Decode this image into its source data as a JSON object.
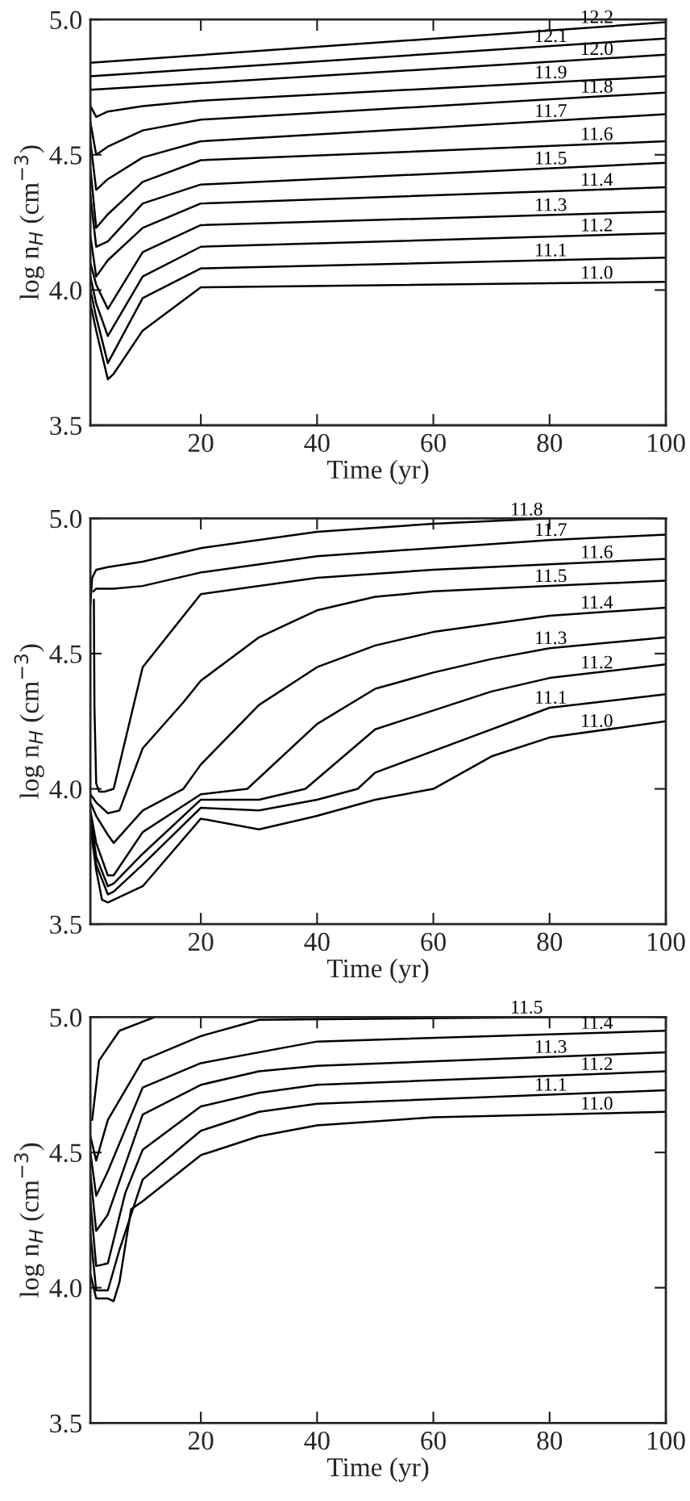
{
  "chart_data": [
    {
      "type": "line",
      "xlabel": "Time (yr)",
      "ylabel": "log n$_{H}$ (cm$^{−3}$)",
      "xlim": [
        1,
        100
      ],
      "xticks": [
        20,
        40,
        60,
        80,
        100
      ],
      "ylim": [
        3.5,
        5.0
      ],
      "yticks": [
        {
          "value": 3.5,
          "label": "3.5"
        },
        {
          "value": 4,
          "label": "4.0"
        },
        {
          "value": 4.5,
          "label": "4.5"
        },
        {
          "value": 5,
          "label": "5.0"
        }
      ],
      "series": [
        {
          "name": "12.2",
          "color": "#000000",
          "x": [
            1,
            100
          ],
          "values": [
            4.84,
            4.99
          ]
        },
        {
          "name": "12.1",
          "color": "#000000",
          "x": [
            1,
            100
          ],
          "values": [
            4.79,
            4.93
          ]
        },
        {
          "name": "12.0",
          "color": "#000000",
          "x": [
            1,
            100
          ],
          "values": [
            4.74,
            4.87
          ]
        },
        {
          "name": "11.9",
          "color": "#000000",
          "x": [
            1,
            2,
            4,
            10,
            20,
            100
          ],
          "values": [
            4.68,
            4.64,
            4.66,
            4.68,
            4.7,
            4.79
          ]
        },
        {
          "name": "11.8",
          "color": "#000000",
          "x": [
            1,
            2,
            4,
            10,
            20,
            100
          ],
          "values": [
            4.62,
            4.5,
            4.53,
            4.59,
            4.63,
            4.73
          ]
        },
        {
          "name": "11.7",
          "color": "#000000",
          "x": [
            1,
            2,
            4,
            10,
            20,
            100
          ],
          "values": [
            4.55,
            4.37,
            4.41,
            4.49,
            4.55,
            4.65
          ]
        },
        {
          "name": "11.6",
          "color": "#000000",
          "x": [
            1,
            2,
            4,
            10,
            20,
            100
          ],
          "values": [
            4.45,
            4.23,
            4.28,
            4.4,
            4.48,
            4.55
          ]
        },
        {
          "name": "11.5",
          "color": "#000000",
          "x": [
            1,
            2,
            4,
            10,
            20,
            100
          ],
          "values": [
            4.35,
            4.16,
            4.18,
            4.32,
            4.39,
            4.47
          ]
        },
        {
          "name": "11.4",
          "color": "#000000",
          "x": [
            1,
            2,
            4,
            10,
            20,
            100
          ],
          "values": [
            4.2,
            4.05,
            4.11,
            4.23,
            4.32,
            4.38
          ]
        },
        {
          "name": "11.3",
          "color": "#000000",
          "x": [
            1,
            2,
            4,
            10,
            20,
            100
          ],
          "values": [
            4.1,
            4.02,
            3.93,
            4.14,
            4.24,
            4.29
          ]
        },
        {
          "name": "11.2",
          "color": "#000000",
          "x": [
            1,
            2,
            4,
            10,
            20,
            100
          ],
          "values": [
            4.05,
            3.95,
            3.83,
            4.05,
            4.16,
            4.21
          ]
        },
        {
          "name": "11.1",
          "color": "#000000",
          "x": [
            1,
            2,
            4,
            10,
            20,
            100
          ],
          "values": [
            4.0,
            3.9,
            3.73,
            3.97,
            4.08,
            4.12
          ]
        },
        {
          "name": "11.0",
          "color": "#000000",
          "x": [
            1,
            2,
            4,
            5,
            10,
            20,
            100
          ],
          "values": [
            3.95,
            3.85,
            3.67,
            3.69,
            3.85,
            4.01,
            4.03
          ]
        }
      ]
    },
    {
      "type": "line",
      "xlabel": "Time (yr)",
      "ylabel": "log n$_{H}$ (cm$^{−3}$)",
      "xlim": [
        1,
        100
      ],
      "xticks": [
        20,
        40,
        60,
        80,
        100
      ],
      "ylim": [
        3.5,
        5.0
      ],
      "yticks": [
        {
          "value": 3.5,
          "label": "3.5"
        },
        {
          "value": 4,
          "label": "4.0"
        },
        {
          "value": 4.5,
          "label": "4.5"
        },
        {
          "value": 5,
          "label": "5.0"
        }
      ],
      "series": [
        {
          "name": "11.8",
          "color": "#000000",
          "x": [
            1,
            1.3,
            2,
            4,
            10,
            20,
            40,
            60,
            80
          ],
          "values": [
            4.68,
            4.78,
            4.81,
            4.82,
            4.84,
            4.89,
            4.95,
            4.98,
            5.0
          ]
        },
        {
          "name": "11.7",
          "color": "#000000",
          "x": [
            1.5,
            2,
            5,
            10,
            20,
            40,
            60,
            80,
            100
          ],
          "values": [
            4.73,
            4.74,
            4.74,
            4.75,
            4.8,
            4.86,
            4.89,
            4.92,
            4.94
          ]
        },
        {
          "name": "11.6",
          "color": "#000000",
          "x": [
            1.6,
            1.7,
            2,
            2.5,
            3.5,
            5,
            10,
            20,
            40,
            60,
            80,
            100
          ],
          "values": [
            4.7,
            4.3,
            4.02,
            3.99,
            3.99,
            4.0,
            4.45,
            4.72,
            4.78,
            4.81,
            4.83,
            4.85
          ]
        },
        {
          "name": "11.5",
          "color": "#000000",
          "x": [
            1,
            2,
            4,
            6,
            10,
            17,
            20,
            30,
            40,
            50,
            60,
            80,
            100
          ],
          "values": [
            3.98,
            3.95,
            3.91,
            3.92,
            4.15,
            4.32,
            4.4,
            4.56,
            4.66,
            4.71,
            4.73,
            4.75,
            4.77
          ]
        },
        {
          "name": "11.4",
          "color": "#000000",
          "x": [
            1,
            2,
            4,
            5,
            10,
            17,
            20,
            30,
            40,
            50,
            60,
            80,
            100
          ],
          "values": [
            3.95,
            3.9,
            3.83,
            3.8,
            3.92,
            4.0,
            4.09,
            4.31,
            4.45,
            4.53,
            4.58,
            4.64,
            4.67
          ]
        },
        {
          "name": "11.3",
          "color": "#000000",
          "x": [
            1,
            2,
            4,
            5,
            10,
            20,
            28,
            40,
            50,
            60,
            70,
            80,
            100
          ],
          "values": [
            3.92,
            3.8,
            3.68,
            3.68,
            3.84,
            3.98,
            4.0,
            4.24,
            4.37,
            4.43,
            4.48,
            4.52,
            4.56
          ]
        },
        {
          "name": "11.2",
          "color": "#000000",
          "x": [
            1,
            2,
            4,
            5,
            10,
            20,
            30,
            38,
            50,
            60,
            70,
            80,
            100
          ],
          "values": [
            3.9,
            3.75,
            3.64,
            3.65,
            3.76,
            3.96,
            3.96,
            4.0,
            4.22,
            4.29,
            4.36,
            4.41,
            4.46
          ]
        },
        {
          "name": "11.1",
          "color": "#000000",
          "x": [
            1,
            2,
            4,
            5,
            10,
            20,
            30,
            40,
            47,
            50,
            60,
            80,
            100
          ],
          "values": [
            3.88,
            3.72,
            3.61,
            3.62,
            3.72,
            3.93,
            3.92,
            3.96,
            4.0,
            4.06,
            4.14,
            4.3,
            4.35
          ]
        },
        {
          "name": "11.0",
          "color": "#000000",
          "x": [
            1,
            2,
            3,
            4,
            10,
            20,
            30,
            40,
            50,
            60,
            70,
            80,
            100
          ],
          "values": [
            3.86,
            3.7,
            3.59,
            3.58,
            3.64,
            3.89,
            3.85,
            3.9,
            3.96,
            4.0,
            4.12,
            4.19,
            4.25
          ]
        }
      ]
    },
    {
      "type": "line",
      "xlabel": "Time (yr)",
      "ylabel": "log n$_{H}$ (cm$^{−3}$)",
      "xlim": [
        1,
        100
      ],
      "xticks": [
        20,
        40,
        60,
        80,
        100
      ],
      "ylim": [
        3.5,
        5.0
      ],
      "yticks": [
        {
          "value": 3.5,
          "label": "3.5"
        },
        {
          "value": 4,
          "label": "4.0"
        },
        {
          "value": 4.5,
          "label": "4.5"
        },
        {
          "value": 5,
          "label": "5.0"
        }
      ],
      "series": [
        {
          "color": "#000000",
          "x": [
            1.3,
            2.5,
            6,
            12
          ],
          "values": [
            4.62,
            4.84,
            4.95,
            5.0
          ]
        },
        {
          "name": "11.5",
          "color": "#000000",
          "x": [
            1,
            2,
            4,
            10,
            20,
            30,
            80
          ],
          "values": [
            4.56,
            4.47,
            4.62,
            4.84,
            4.93,
            4.99,
            5.0
          ]
        },
        {
          "name": "11.4",
          "color": "#000000",
          "x": [
            1,
            2,
            4,
            10,
            20,
            40,
            100
          ],
          "values": [
            4.5,
            4.34,
            4.43,
            4.74,
            4.83,
            4.91,
            4.95
          ]
        },
        {
          "name": "11.3",
          "color": "#000000",
          "x": [
            1,
            2,
            4,
            10,
            20,
            30,
            40,
            100
          ],
          "values": [
            4.42,
            4.21,
            4.27,
            4.64,
            4.75,
            4.8,
            4.82,
            4.87
          ]
        },
        {
          "name": "11.2",
          "color": "#000000",
          "x": [
            1,
            2,
            4,
            7,
            10,
            20,
            30,
            40,
            100
          ],
          "values": [
            4.32,
            4.08,
            4.09,
            4.35,
            4.51,
            4.67,
            4.72,
            4.75,
            4.8
          ]
        },
        {
          "name": "11.1",
          "color": "#000000",
          "x": [
            1,
            2,
            4,
            6,
            10,
            20,
            30,
            40,
            100
          ],
          "values": [
            4.2,
            3.99,
            3.99,
            4.14,
            4.4,
            4.58,
            4.65,
            4.68,
            4.73
          ]
        },
        {
          "name": "11.0",
          "color": "#000000",
          "x": [
            1,
            2,
            4,
            5,
            6,
            8,
            10,
            20,
            30,
            40,
            60,
            100
          ],
          "values": [
            4.05,
            3.96,
            3.96,
            3.95,
            4.02,
            4.29,
            4.32,
            4.49,
            4.56,
            4.6,
            4.63,
            4.65
          ]
        }
      ]
    }
  ]
}
